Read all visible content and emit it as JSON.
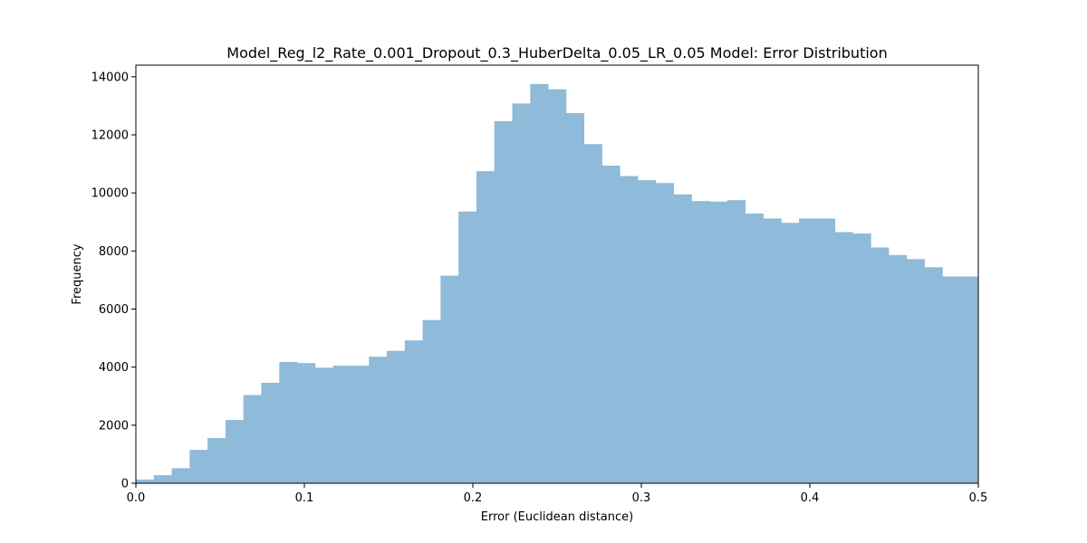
{
  "chart_data": {
    "type": "bar",
    "title": "Model_Reg_l2_Rate_0.001_Dropout_0.3_HuberDelta_0.05_LR_0.05 Model: Error Distribution",
    "xlabel": "Error (Euclidean distance)",
    "ylabel": "Frequency",
    "xlim": [
      0.0,
      0.5
    ],
    "ylim": [
      0,
      14400
    ],
    "xticks": [
      0.0,
      0.1,
      0.2,
      0.3,
      0.4,
      0.5
    ],
    "xtick_labels": [
      "0.0",
      "0.1",
      "0.2",
      "0.3",
      "0.4",
      "0.5"
    ],
    "yticks": [
      0,
      2000,
      4000,
      6000,
      8000,
      10000,
      12000,
      14000
    ],
    "ytick_labels": [
      "0",
      "2000",
      "4000",
      "6000",
      "8000",
      "10000",
      "12000",
      "14000"
    ],
    "bin_width": 0.010638,
    "bin_start": 0.0,
    "values": [
      130,
      280,
      520,
      1150,
      1560,
      2180,
      3040,
      3460,
      4180,
      4140,
      3980,
      4050,
      4050,
      4360,
      4560,
      4920,
      5620,
      7150,
      9360,
      10750,
      12470,
      13080,
      13750,
      13570,
      12750,
      11680,
      10940,
      10580,
      10440,
      10340,
      9950,
      9720,
      9700,
      9750,
      9290,
      9120,
      8970,
      9120,
      9120,
      8650,
      8600,
      8120,
      7860,
      7720,
      7440,
      7120,
      7120
    ],
    "bar_color": "#8fbad9",
    "grid": false
  }
}
